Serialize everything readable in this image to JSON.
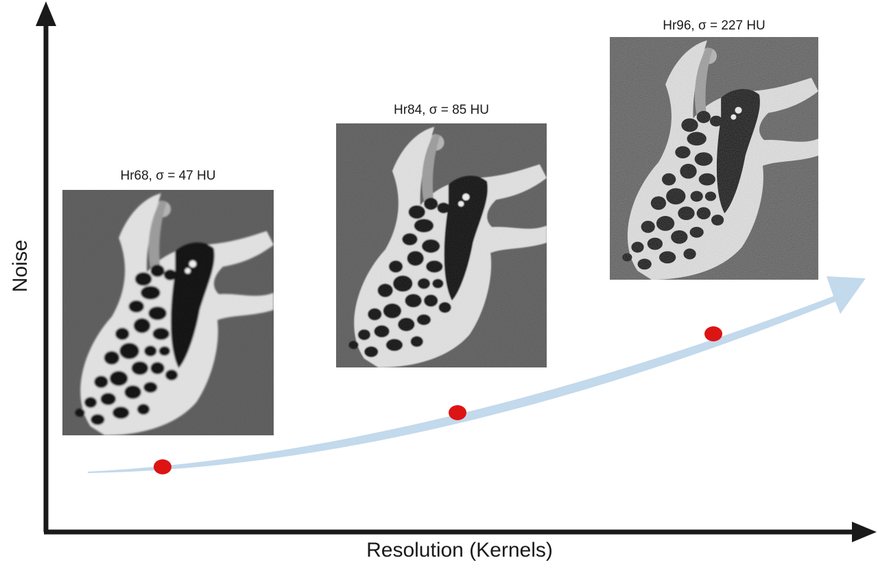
{
  "axes": {
    "x_label": "Resolution (Kernels)",
    "y_label": "Noise"
  },
  "panels": [
    {
      "caption": "Hr68, σ = 47 HU",
      "kernel": "Hr68",
      "noise_hu": 47,
      "noise_level": "low"
    },
    {
      "caption": "Hr84, σ = 85 HU",
      "kernel": "Hr84",
      "noise_hu": 85,
      "noise_level": "medium"
    },
    {
      "caption": "Hr96, σ = 227 HU",
      "kernel": "Hr96",
      "noise_hu": 227,
      "noise_level": "high"
    }
  ],
  "colors": {
    "axis": "#1a1a1a",
    "trend_arrow": "#c3d9ec",
    "marker": "#dd1414",
    "ct_background": "#5a5a5a",
    "ct_bone": "#e2e2e2",
    "ct_air": "#0c0c0c"
  }
}
